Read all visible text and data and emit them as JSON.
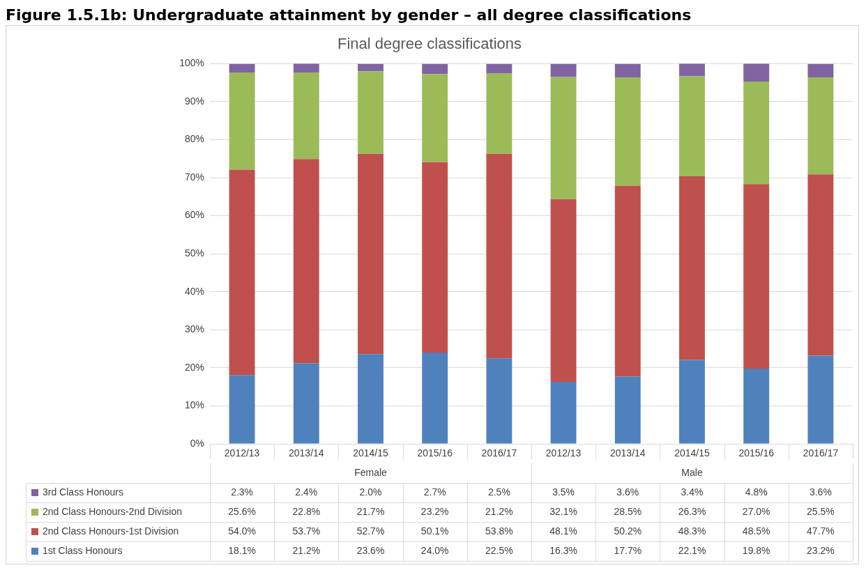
{
  "chart_data": {
    "type": "bar",
    "title": "Figure 1.5.1b: Undergraduate attainment by gender – all degree classifications",
    "subtitle": "Final degree classifications",
    "categories": [
      "2012/13",
      "2013/14",
      "2014/15",
      "2015/16",
      "2016/17",
      "2012/13",
      "2013/14",
      "2014/15",
      "2015/16",
      "2016/17"
    ],
    "annotations": [
      "Female",
      "Male"
    ],
    "stacked": true,
    "grid": "y",
    "legend": "bottom",
    "ylim": [
      0,
      100
    ],
    "yticks": [
      {
        "value": 0,
        "label": "0%"
      },
      {
        "value": 10,
        "label": "10%"
      },
      {
        "value": 20,
        "label": "20%"
      },
      {
        "value": 30,
        "label": "30%"
      },
      {
        "value": 40,
        "label": "40%"
      },
      {
        "value": 50,
        "label": "50%"
      },
      {
        "value": 60,
        "label": "60%"
      },
      {
        "value": 70,
        "label": "70%"
      },
      {
        "value": 80,
        "label": "80%"
      },
      {
        "value": 90,
        "label": "90%"
      },
      {
        "value": 100,
        "label": "100%"
      }
    ],
    "series": [
      {
        "name": "1st Class Honours",
        "color": "#4f81bd",
        "values": [
          18.1,
          21.2,
          23.6,
          24.0,
          22.5,
          16.3,
          17.7,
          22.1,
          19.8,
          23.2
        ],
        "value_labels": [
          "18.1%",
          "21.2%",
          "23.6%",
          "24.0%",
          "22.5%",
          "16.3%",
          "17.7%",
          "22.1%",
          "19.8%",
          "23.2%"
        ]
      },
      {
        "name": "2nd Class Honours-1st Division",
        "color": "#c0504d",
        "values": [
          54.0,
          53.7,
          52.7,
          50.1,
          53.8,
          48.1,
          50.2,
          48.3,
          48.5,
          47.7
        ],
        "value_labels": [
          "54.0%",
          "53.7%",
          "52.7%",
          "50.1%",
          "53.8%",
          "48.1%",
          "50.2%",
          "48.3%",
          "48.5%",
          "47.7%"
        ]
      },
      {
        "name": "2nd Class Honours-2nd Division",
        "color": "#9bbb59",
        "values": [
          25.6,
          22.8,
          21.7,
          23.2,
          21.2,
          32.1,
          28.5,
          26.3,
          27.0,
          25.5
        ],
        "value_labels": [
          "25.6%",
          "22.8%",
          "21.7%",
          "23.2%",
          "21.2%",
          "32.1%",
          "28.5%",
          "26.3%",
          "27.0%",
          "25.5%"
        ]
      },
      {
        "name": "3rd Class Honours",
        "color": "#8064a2",
        "values": [
          2.3,
          2.4,
          2.0,
          2.7,
          2.5,
          3.5,
          3.6,
          3.4,
          4.8,
          3.6
        ],
        "value_labels": [
          "2.3%",
          "2.4%",
          "2.0%",
          "2.7%",
          "2.5%",
          "3.5%",
          "3.6%",
          "3.4%",
          "4.8%",
          "3.6%"
        ]
      }
    ]
  }
}
